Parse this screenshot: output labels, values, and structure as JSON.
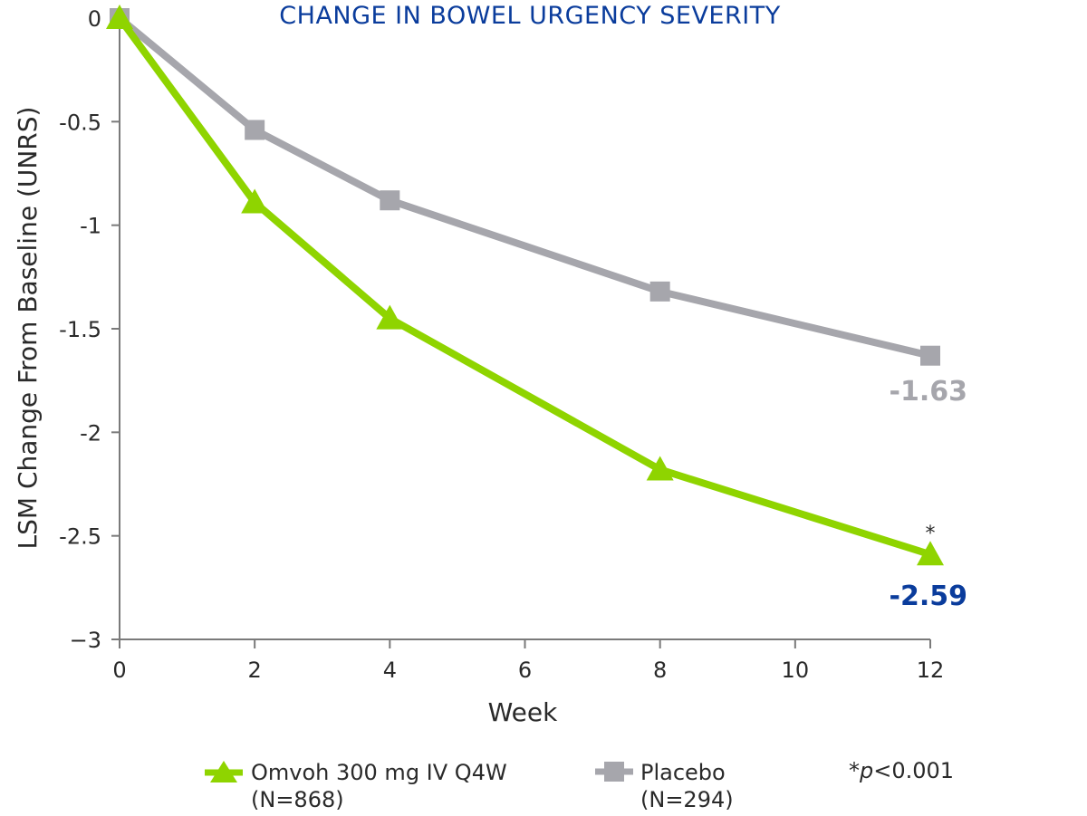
{
  "chart_data": {
    "type": "line",
    "title": "CHANGE IN BOWEL URGENCY SEVERITY",
    "xlabel": "Week",
    "ylabel": "LSM Change From Baseline (UNRS)",
    "xlim": [
      0,
      12
    ],
    "ylim": [
      -3,
      0
    ],
    "x_ticks": [
      0,
      2,
      4,
      6,
      8,
      10,
      12
    ],
    "x_tick_labels": [
      "0",
      "2",
      "4",
      "6",
      "8",
      "10",
      "12"
    ],
    "y_ticks": [
      0,
      -0.5,
      -1,
      -1.5,
      -2,
      -2.5,
      -3
    ],
    "y_tick_labels": [
      "0",
      "-0.5",
      "-1",
      "-1.5",
      "-2",
      "-2.5",
      "−3"
    ],
    "grid": false,
    "series": [
      {
        "name": "Omvoh 300 mg IV Q4W",
        "n_label": "(N=868)",
        "marker": "triangle",
        "color": "#8fd400",
        "x": [
          0,
          2,
          4,
          8,
          12
        ],
        "values": [
          0,
          -0.89,
          -1.45,
          -2.18,
          -2.59
        ],
        "end_label": "-2.59",
        "end_label_color": "#0a3c9c",
        "significance_mark": "*"
      },
      {
        "name": "Placebo",
        "n_label": "(N=294)",
        "marker": "square",
        "color": "#a6a6ac",
        "x": [
          0,
          2,
          4,
          8,
          12
        ],
        "values": [
          0,
          -0.54,
          -0.88,
          -1.32,
          -1.63
        ],
        "end_label": "-1.63",
        "end_label_color": "#a6a6ac"
      }
    ],
    "footnote": {
      "prefix": "*",
      "italic": "p",
      "rest": "<0.001"
    },
    "legend_position": "bottom"
  }
}
